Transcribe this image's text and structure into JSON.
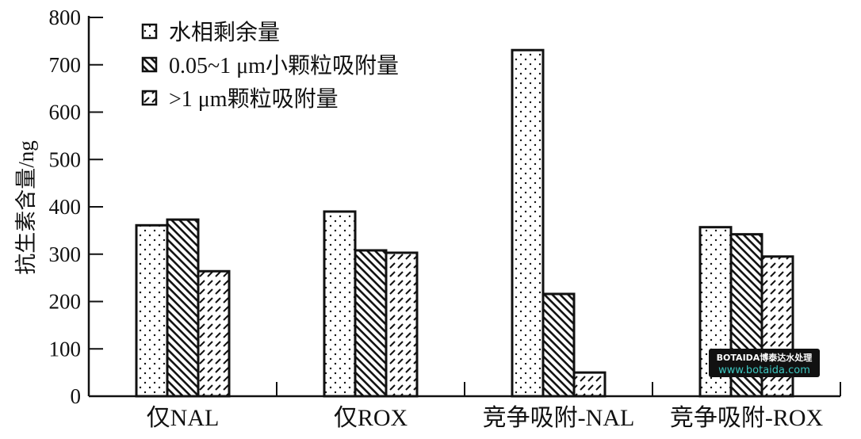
{
  "chart_data": {
    "type": "bar",
    "title": "",
    "xlabel": "",
    "ylabel": "抗生素含量/ng",
    "ylim": [
      0,
      800
    ],
    "yticks": [
      0,
      100,
      200,
      300,
      400,
      500,
      600,
      700,
      800
    ],
    "grid": false,
    "legend_position": "top-left",
    "categories": [
      "仅NAL",
      "仅ROX",
      "竞争吸附-NAL",
      "竞争吸附-ROX"
    ],
    "series": [
      {
        "name": "水相剩余量",
        "pattern": "dots",
        "values": [
          361,
          390,
          731,
          357
        ]
      },
      {
        "name": "0.05~1 μm小颗粒吸附量",
        "pattern": "diagonal-lines",
        "values": [
          373,
          308,
          216,
          342
        ]
      },
      {
        "name": ">1 μm颗粒吸附量",
        "pattern": "dashed-slashes",
        "values": [
          264,
          303,
          50,
          295
        ]
      }
    ]
  },
  "watermark": {
    "line1": "BOTAIDA博泰达水处理",
    "line2": "www.botaida.com"
  }
}
